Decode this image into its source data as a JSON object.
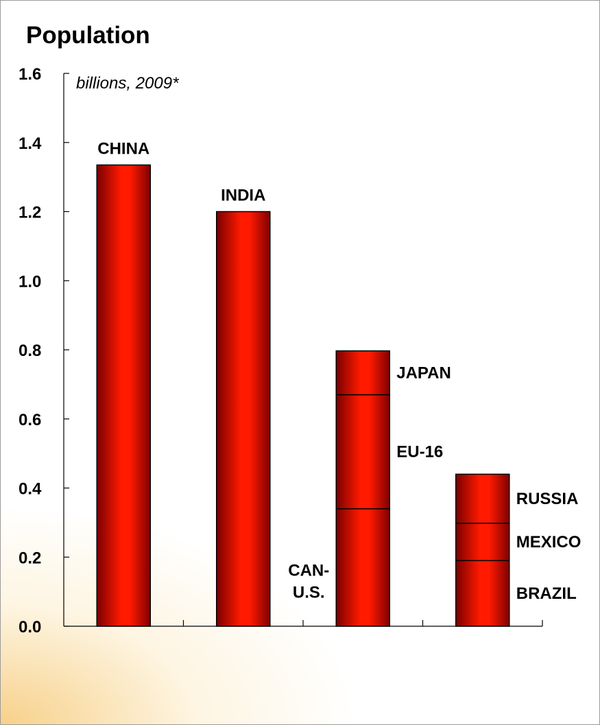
{
  "chart_data": {
    "type": "bar",
    "stacked": true,
    "title": "Population",
    "subtitle": "billions, 2009*",
    "xlabel": "",
    "ylabel": "",
    "ylim": [
      0,
      1.6
    ],
    "yticks": [
      "0.0",
      "0.2",
      "0.4",
      "0.6",
      "0.8",
      "1.0",
      "1.2",
      "1.4",
      "1.6"
    ],
    "grid": false,
    "legend": "none",
    "bar_color": "#e00000",
    "bars": [
      {
        "segments": [
          {
            "label": "CHINA",
            "value": 1.335,
            "label_position": "top"
          }
        ]
      },
      {
        "segments": [
          {
            "label": "INDIA",
            "value": 1.2,
            "label_position": "top"
          }
        ]
      },
      {
        "segments": [
          {
            "label": "CAN-\nU.S.",
            "value": 0.34,
            "label_position": "left"
          },
          {
            "label": "EU-16",
            "value": 0.33,
            "label_position": "right"
          },
          {
            "label": "JAPAN",
            "value": 0.127,
            "label_position": "right"
          }
        ]
      },
      {
        "segments": [
          {
            "label": "BRAZIL",
            "value": 0.19,
            "label_position": "right"
          },
          {
            "label": "MEXICO",
            "value": 0.108,
            "label_position": "right"
          },
          {
            "label": "RUSSIA",
            "value": 0.142,
            "label_position": "right"
          }
        ]
      }
    ]
  }
}
